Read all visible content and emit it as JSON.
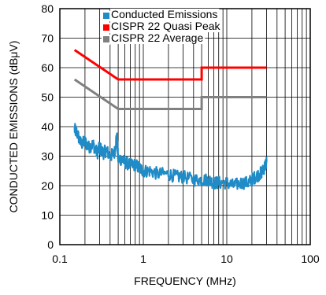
{
  "chart_data": {
    "type": "line",
    "xlabel": "FREQUENCY (MHz)",
    "ylabel": "CONDUCTED EMISSIONS (dBμV)",
    "x_scale": "log",
    "xlim": [
      0.1,
      100
    ],
    "ylim": [
      0,
      80
    ],
    "x_ticks": [
      0.1,
      1,
      10,
      100
    ],
    "x_tick_labels": [
      "0.1",
      "1",
      "10",
      "100"
    ],
    "y_ticks": [
      0,
      10,
      20,
      30,
      40,
      50,
      60,
      70,
      80
    ],
    "y_tick_labels": [
      "0",
      "10",
      "20",
      "30",
      "40",
      "50",
      "60",
      "70",
      "80"
    ],
    "grid": true,
    "legend_position": "top-right",
    "series": [
      {
        "name": "Conducted Emissions",
        "color": "#1f8bc7",
        "noisy": true,
        "x": [
          0.15,
          0.16,
          0.18,
          0.2,
          0.22,
          0.25,
          0.28,
          0.3,
          0.33,
          0.36,
          0.4,
          0.45,
          0.48,
          0.5,
          0.55,
          0.6,
          0.7,
          0.8,
          0.9,
          1.0,
          1.2,
          1.5,
          2,
          2.5,
          3,
          4,
          5,
          6,
          7,
          8,
          10,
          12,
          15,
          18,
          20,
          22,
          25,
          27,
          29,
          30
        ],
        "y": [
          39,
          38,
          34,
          35,
          33,
          34,
          31,
          33,
          31,
          32,
          30,
          31,
          37,
          29,
          29,
          28,
          27,
          27,
          26,
          25,
          25,
          24,
          24,
          23,
          23,
          22,
          22,
          22,
          21,
          21,
          21,
          20,
          21,
          21,
          22,
          23,
          24,
          25,
          27,
          28
        ]
      },
      {
        "name": "CISPR 22 Quasi Peak",
        "color": "#ff0000",
        "noisy": false,
        "x": [
          0.15,
          0.5,
          5,
          5,
          30
        ],
        "y": [
          66,
          56,
          56,
          60,
          60
        ]
      },
      {
        "name": "CISPR 22 Average",
        "color": "#808080",
        "noisy": false,
        "x": [
          0.15,
          0.5,
          5,
          5,
          30
        ],
        "y": [
          56,
          46,
          46,
          50,
          50
        ]
      }
    ]
  }
}
